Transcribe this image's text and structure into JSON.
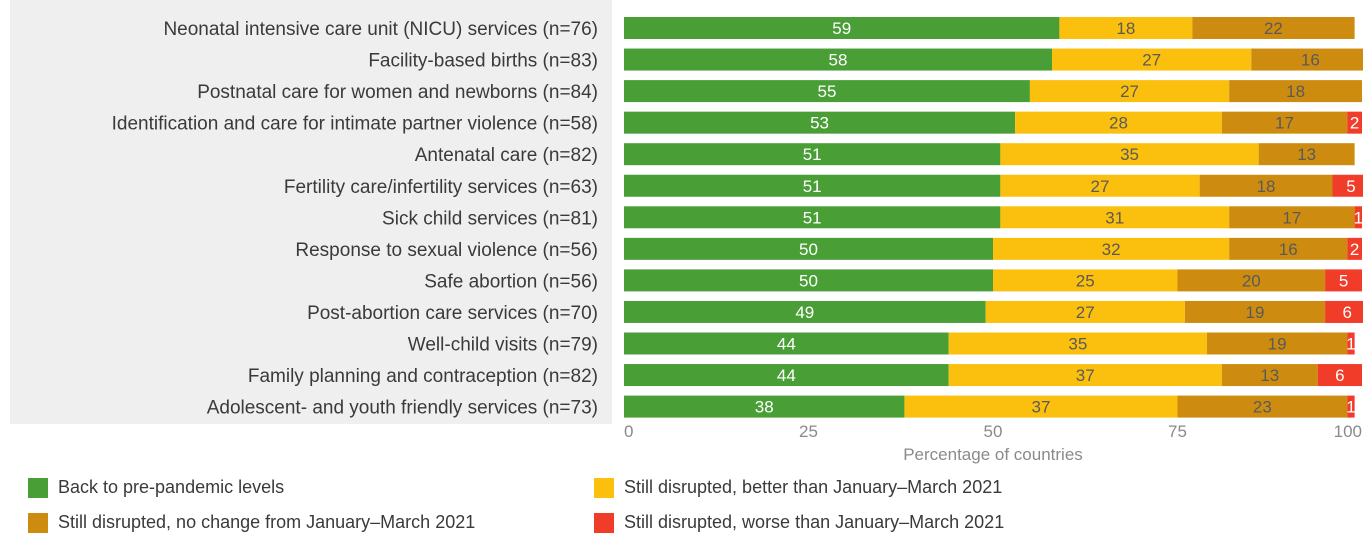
{
  "chart_data": {
    "type": "bar",
    "orientation": "horizontal",
    "stacked": true,
    "categories": [
      "Neonatal intensive care unit (NICU) services (n=76)",
      "Facility-based births (n=83)",
      "Postnatal care for women and newborns (n=84)",
      "Identification and care for intimate partner violence (n=58)",
      "Antenatal care (n=82)",
      "Fertility care/infertility services (n=63)",
      "Sick child services (n=81)",
      "Response to sexual violence (n=56)",
      "Safe abortion (n=56)",
      "Post-abortion care services (n=70)",
      "Well-child visits (n=79)",
      "Family planning and contraception (n=82)",
      "Adolescent- and youth friendly services (n=73)"
    ],
    "series": [
      {
        "name": "Back to pre-pandemic levels",
        "color": "#4a9e36",
        "label_color": "#ffffff",
        "values": [
          59,
          58,
          55,
          53,
          51,
          51,
          51,
          50,
          50,
          49,
          44,
          44,
          38
        ]
      },
      {
        "name": "Still disrupted, better than January–March 2021",
        "color": "#fbc00e",
        "label_color": "#5a5a5a",
        "values": [
          18,
          27,
          27,
          28,
          35,
          27,
          31,
          32,
          25,
          27,
          35,
          37,
          37
        ]
      },
      {
        "name": "Still disrupted, no change from January–March 2021",
        "color": "#cd8c0f",
        "label_color": "#5a5a5a",
        "values": [
          22,
          16,
          18,
          17,
          13,
          18,
          17,
          16,
          20,
          19,
          19,
          13,
          23
        ]
      },
      {
        "name": "Still disrupted, worse than January–March 2021",
        "color": "#f03c28",
        "label_color": "#ffffff",
        "values": [
          0,
          0,
          0,
          2,
          0,
          5,
          1,
          2,
          5,
          6,
          1,
          6,
          1
        ]
      }
    ],
    "xlim": [
      0,
      100
    ],
    "xticks": [
      0,
      25,
      50,
      75,
      100
    ],
    "xlabel": "Percentage of countries",
    "ylabel": "",
    "title": "",
    "grid": false,
    "legend_position": "bottom",
    "label_panel_color": "#efefef"
  }
}
